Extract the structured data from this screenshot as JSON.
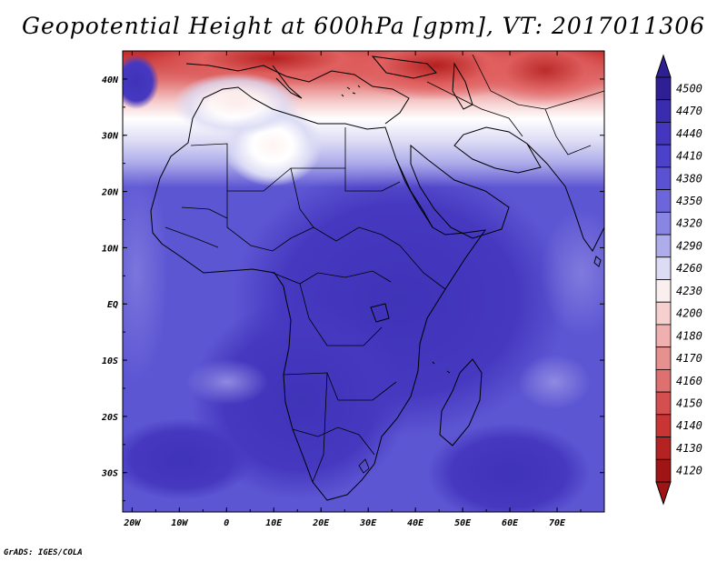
{
  "title": "Geopotential Height at 600hPa [gpm], VT: 2017011306",
  "footer": "GrADS: IGES/COLA",
  "map": {
    "region": "Africa and surrounding seas",
    "projection": "latitude-longitude",
    "lon_range": [
      -22,
      80
    ],
    "lat_range": [
      -37,
      45
    ],
    "lon_ticks": [
      "20W",
      "10W",
      "0",
      "10E",
      "20E",
      "30E",
      "40E",
      "50E",
      "60E",
      "70E"
    ],
    "lat_ticks": [
      "40N",
      "30N",
      "20N",
      "10N",
      "EQ",
      "10S",
      "20S",
      "30S"
    ],
    "field_summary": "Highest heights (~4400-4440 gpm, dark blue) over central/southern Africa and the Indian Ocean; lowest heights (~4120-4200 gpm, red) across the Mediterranean, Middle East and Iran in the north; a white/pink ridge-weak area near 25N 5E."
  },
  "colorbar": {
    "levels": [
      "4500",
      "4470",
      "4440",
      "4410",
      "4380",
      "4350",
      "4320",
      "4290",
      "4260",
      "4230",
      "4200",
      "4180",
      "4170",
      "4160",
      "4150",
      "4140",
      "4130",
      "4120"
    ],
    "colors": [
      "#2e1f95",
      "#3a2cae",
      "#4436bf",
      "#4c41c9",
      "#5a52d2",
      "#6c66da",
      "#8985e2",
      "#aeacea",
      "#dcdcf5",
      "#fbeeee",
      "#f6cfcf",
      "#f0b0b0",
      "#e79090",
      "#de7070",
      "#d45050",
      "#c93434",
      "#b52222",
      "#9f1515"
    ],
    "top_arrow_color": "#2e1f95",
    "bottom_arrow_color": "#9f1515"
  }
}
